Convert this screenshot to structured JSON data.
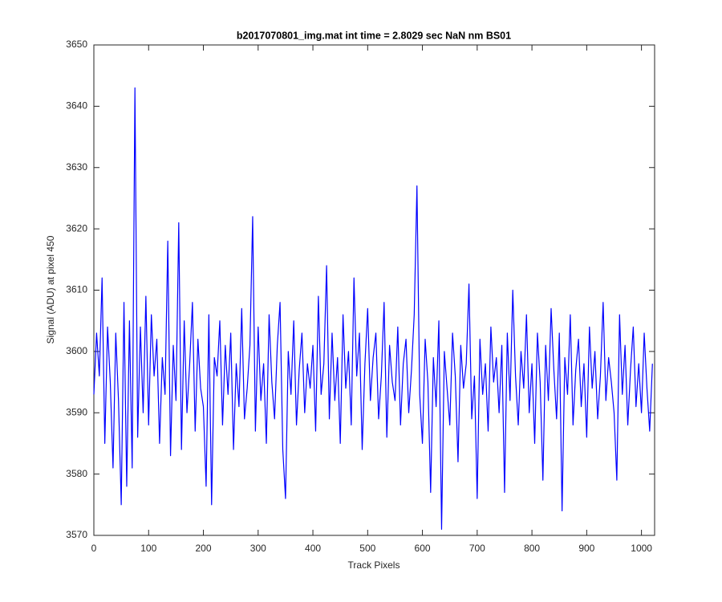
{
  "chart_data": {
    "type": "line",
    "title": "b2017070801_img.mat int time = 2.8029 sec  NaN nm BS01",
    "xlabel": "Track Pixels",
    "ylabel": "Signal (ADU) at pixel 450",
    "color": "#0000ff",
    "grid": false,
    "xlim": [
      0,
      1024
    ],
    "ylim": [
      3570,
      3650
    ],
    "xticks": [
      0,
      100,
      200,
      300,
      400,
      500,
      600,
      700,
      800,
      900,
      1000
    ],
    "yticks": [
      3570,
      3580,
      3590,
      3600,
      3610,
      3620,
      3630,
      3640,
      3650
    ],
    "x": [
      0,
      5,
      10,
      15,
      20,
      25,
      30,
      35,
      40,
      45,
      50,
      55,
      60,
      65,
      70,
      75,
      80,
      85,
      90,
      95,
      100,
      105,
      110,
      115,
      120,
      125,
      130,
      135,
      140,
      145,
      150,
      155,
      160,
      165,
      170,
      175,
      180,
      185,
      190,
      195,
      200,
      205,
      210,
      215,
      220,
      225,
      230,
      235,
      240,
      245,
      250,
      255,
      260,
      265,
      270,
      275,
      280,
      285,
      290,
      295,
      300,
      305,
      310,
      315,
      320,
      325,
      330,
      335,
      340,
      345,
      350,
      355,
      360,
      365,
      370,
      375,
      380,
      385,
      390,
      395,
      400,
      405,
      410,
      415,
      420,
      425,
      430,
      435,
      440,
      445,
      450,
      455,
      460,
      465,
      470,
      475,
      480,
      485,
      490,
      495,
      500,
      505,
      510,
      515,
      520,
      525,
      530,
      535,
      540,
      545,
      550,
      555,
      560,
      565,
      570,
      575,
      580,
      585,
      590,
      595,
      600,
      605,
      610,
      615,
      620,
      625,
      630,
      635,
      640,
      645,
      650,
      655,
      660,
      665,
      670,
      675,
      680,
      685,
      690,
      695,
      700,
      705,
      710,
      715,
      720,
      725,
      730,
      735,
      740,
      745,
      750,
      755,
      760,
      765,
      770,
      775,
      780,
      785,
      790,
      795,
      800,
      805,
      810,
      815,
      820,
      825,
      830,
      835,
      840,
      845,
      850,
      855,
      860,
      865,
      870,
      875,
      880,
      885,
      890,
      895,
      900,
      905,
      910,
      915,
      920,
      925,
      930,
      935,
      940,
      945,
      950,
      955,
      960,
      965,
      970,
      975,
      980,
      985,
      990,
      995,
      1000,
      1005,
      1010,
      1015,
      1020
    ],
    "values": [
      3593,
      3603,
      3596,
      3612,
      3585,
      3604,
      3595,
      3581,
      3603,
      3592,
      3575,
      3608,
      3578,
      3605,
      3581,
      3643,
      3586,
      3604,
      3590,
      3609,
      3588,
      3606,
      3596,
      3602,
      3585,
      3599,
      3593,
      3618,
      3583,
      3601,
      3592,
      3621,
      3584,
      3605,
      3590,
      3598,
      3608,
      3587,
      3602,
      3594,
      3591,
      3578,
      3606,
      3575,
      3599,
      3596,
      3605,
      3588,
      3601,
      3593,
      3603,
      3584,
      3598,
      3591,
      3607,
      3589,
      3594,
      3601,
      3622,
      3587,
      3604,
      3592,
      3598,
      3585,
      3606,
      3595,
      3589,
      3601,
      3608,
      3584,
      3576,
      3600,
      3593,
      3605,
      3588,
      3597,
      3603,
      3590,
      3598,
      3594,
      3601,
      3587,
      3609,
      3593,
      3598,
      3614,
      3589,
      3603,
      3592,
      3599,
      3585,
      3606,
      3594,
      3600,
      3588,
      3612,
      3596,
      3603,
      3584,
      3598,
      3607,
      3592,
      3599,
      3603,
      3589,
      3596,
      3608,
      3586,
      3601,
      3595,
      3592,
      3604,
      3588,
      3598,
      3602,
      3590,
      3597,
      3606,
      3627,
      3593,
      3585,
      3602,
      3595,
      3577,
      3599,
      3591,
      3605,
      3571,
      3600,
      3594,
      3588,
      3603,
      3596,
      3582,
      3601,
      3594,
      3598,
      3611,
      3589,
      3596,
      3576,
      3602,
      3593,
      3598,
      3587,
      3604,
      3595,
      3599,
      3590,
      3601,
      3577,
      3603,
      3592,
      3610,
      3596,
      3588,
      3600,
      3594,
      3606,
      3590,
      3598,
      3585,
      3603,
      3595,
      3579,
      3601,
      3592,
      3607,
      3597,
      3589,
      3603,
      3574,
      3599,
      3593,
      3606,
      3588,
      3597,
      3602,
      3591,
      3598,
      3586,
      3604,
      3594,
      3600,
      3589,
      3596,
      3608,
      3592,
      3599,
      3595,
      3590,
      3579,
      3606,
      3593,
      3601,
      3588,
      3597,
      3604,
      3591,
      3598,
      3590,
      3603,
      3594,
      3587,
      3598
    ]
  }
}
